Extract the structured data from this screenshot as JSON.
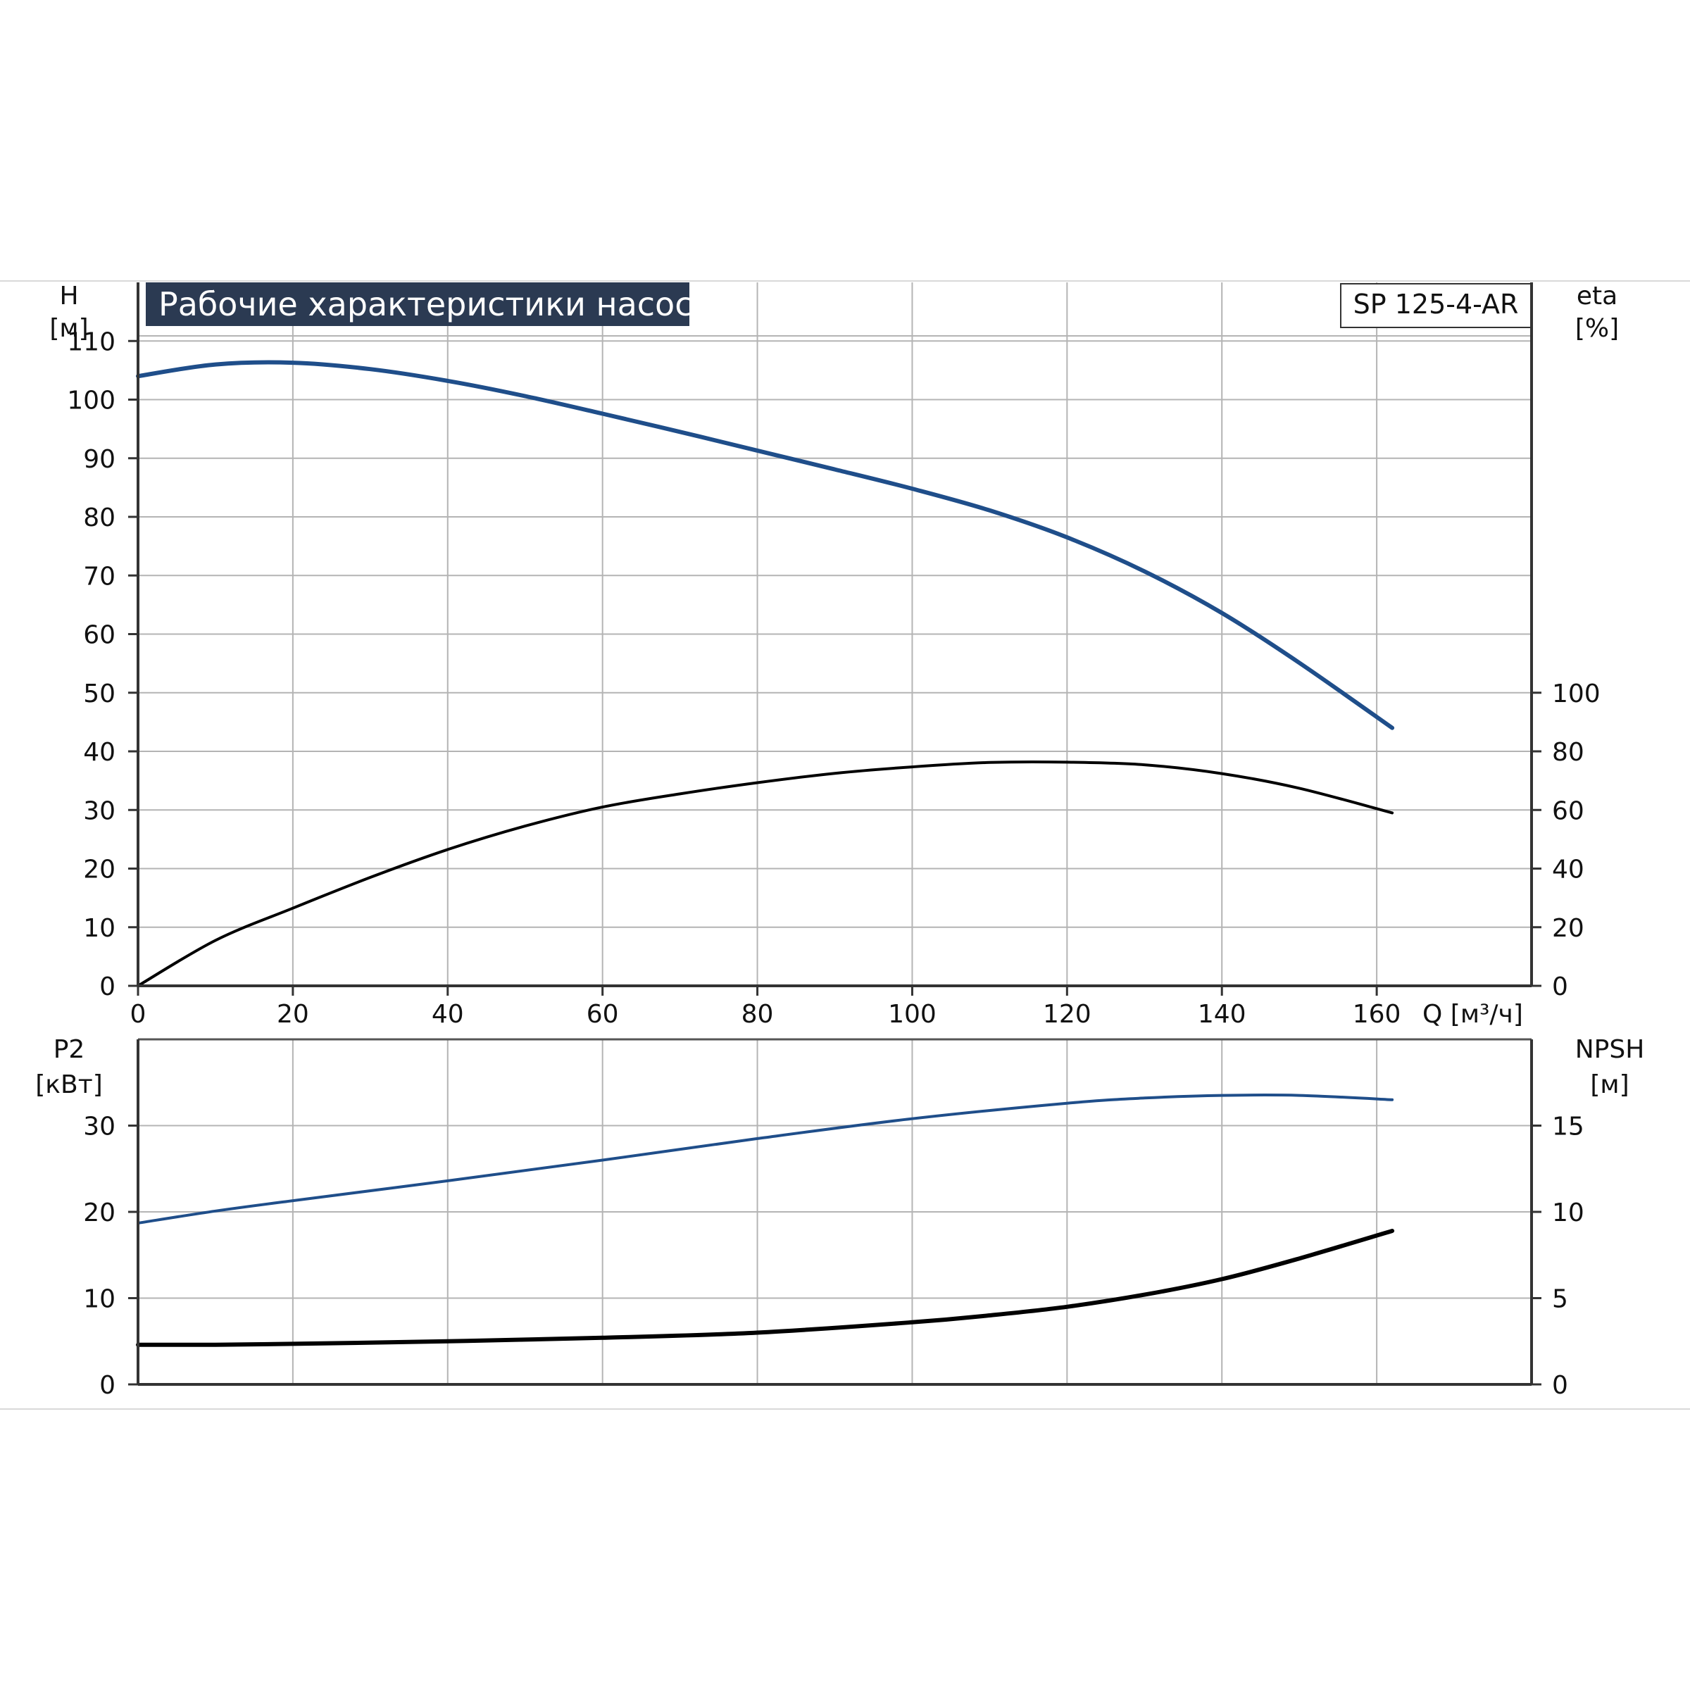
{
  "title": "Рабочие характеристики насоса",
  "model": "SP 125-4-AR",
  "colors": {
    "blue": "#1f4e8a",
    "black": "#000000",
    "grid": "#b4b4b4",
    "title_bg": "#2b3a52"
  },
  "chart_data": [
    {
      "type": "line",
      "panel": "top",
      "x_label": "Q [м³/ч]",
      "x_ticks": [
        "0",
        "20",
        "40",
        "60",
        "80",
        "100",
        "120",
        "140",
        "160"
      ],
      "xlim": [
        0,
        180
      ],
      "left_axis": {
        "label": "H",
        "unit": "[м]",
        "ylim": [
          0,
          120
        ],
        "ticks": [
          "0",
          "10",
          "20",
          "30",
          "40",
          "50",
          "60",
          "70",
          "80",
          "90",
          "100",
          "110"
        ]
      },
      "right_axis": {
        "label": "eta",
        "unit": "[%]",
        "ylim": [
          0,
          240
        ],
        "ticks": [
          "0",
          "20",
          "40",
          "60",
          "80",
          "100"
        ]
      },
      "series": [
        {
          "axis": "left",
          "color": "blue",
          "x": [
            0,
            10,
            20,
            30,
            40,
            50,
            60,
            70,
            80,
            90,
            100,
            110,
            120,
            130,
            140,
            150,
            162
          ],
          "y": [
            104,
            106,
            106.3,
            105.2,
            103.2,
            100.6,
            97.6,
            94.5,
            91.3,
            88.1,
            84.8,
            81.1,
            76.5,
            70.7,
            63.6,
            55.1,
            44
          ]
        },
        {
          "axis": "right",
          "color": "black",
          "x": [
            0,
            10,
            20,
            30,
            40,
            50,
            60,
            70,
            80,
            90,
            100,
            110,
            120,
            130,
            140,
            150,
            162
          ],
          "y": [
            0,
            15.5,
            26.5,
            37,
            46.5,
            54.5,
            61,
            65.5,
            69.3,
            72.5,
            74.7,
            76.2,
            76.3,
            75.4,
            72.4,
            67.4,
            59
          ]
        }
      ]
    },
    {
      "type": "line",
      "panel": "bottom",
      "xlim": [
        0,
        180
      ],
      "left_axis": {
        "label": "P2",
        "unit": "[кВт]",
        "ylim": [
          0,
          40
        ],
        "ticks": [
          "0",
          "10",
          "20",
          "30"
        ]
      },
      "right_axis": {
        "label": "NPSH",
        "unit": "[м]",
        "ylim": [
          0,
          20
        ],
        "ticks": [
          "0",
          "5",
          "10",
          "15"
        ]
      },
      "series": [
        {
          "axis": "left",
          "color": "blue",
          "x": [
            0,
            10,
            20,
            40,
            60,
            80,
            100,
            120,
            130,
            140,
            150,
            162
          ],
          "y": [
            18.7,
            20.1,
            21.3,
            23.6,
            26.0,
            28.5,
            30.8,
            32.6,
            33.2,
            33.5,
            33.5,
            33.0
          ]
        },
        {
          "axis": "right",
          "color": "black",
          "x": [
            0,
            10,
            20,
            40,
            60,
            80,
            100,
            110,
            120,
            130,
            140,
            150,
            162
          ],
          "y": [
            2.3,
            2.3,
            2.35,
            2.5,
            2.7,
            3.0,
            3.6,
            4.0,
            4.5,
            5.2,
            6.1,
            7.3,
            8.9
          ]
        }
      ]
    }
  ]
}
